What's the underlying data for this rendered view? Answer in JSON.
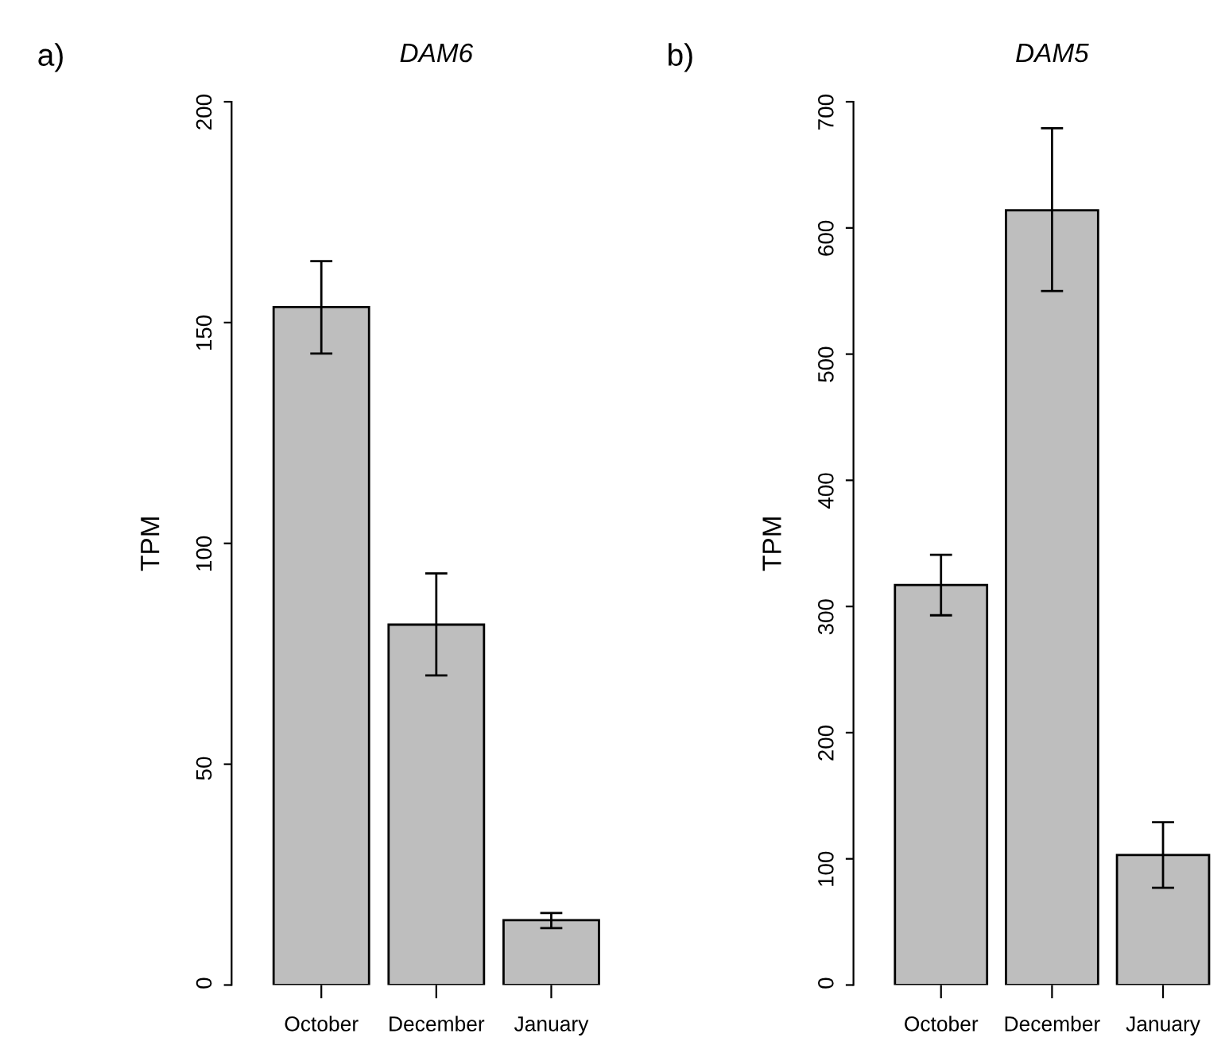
{
  "chart_data": [
    {
      "type": "bar",
      "title": "DAM6",
      "ylabel": "TPM",
      "annotations": [
        "a)"
      ],
      "categories": [
        "October",
        "December",
        "January"
      ],
      "values": [
        153.5,
        81.6,
        14.7
      ],
      "errors": [
        [
          143,
          163.9
        ],
        [
          70.1,
          93.2
        ],
        [
          12.9,
          16.3
        ]
      ],
      "color": "#bebebe",
      "ylim": [
        0,
        200
      ],
      "yticks": [
        0,
        50,
        100,
        150,
        200
      ],
      "grid": false,
      "legend": false
    },
    {
      "type": "bar",
      "title": "DAM5",
      "ylabel": "TPM",
      "annotations": [
        "b)"
      ],
      "categories": [
        "October",
        "December",
        "January"
      ],
      "values": [
        317,
        614,
        103
      ],
      "errors": [
        [
          293,
          341
        ],
        [
          550,
          679
        ],
        [
          77,
          129
        ]
      ],
      "color": "#bebebe",
      "ylim": [
        0,
        700
      ],
      "yticks": [
        0,
        100,
        200,
        300,
        400,
        500,
        600,
        700
      ],
      "grid": false,
      "legend": false
    }
  ]
}
